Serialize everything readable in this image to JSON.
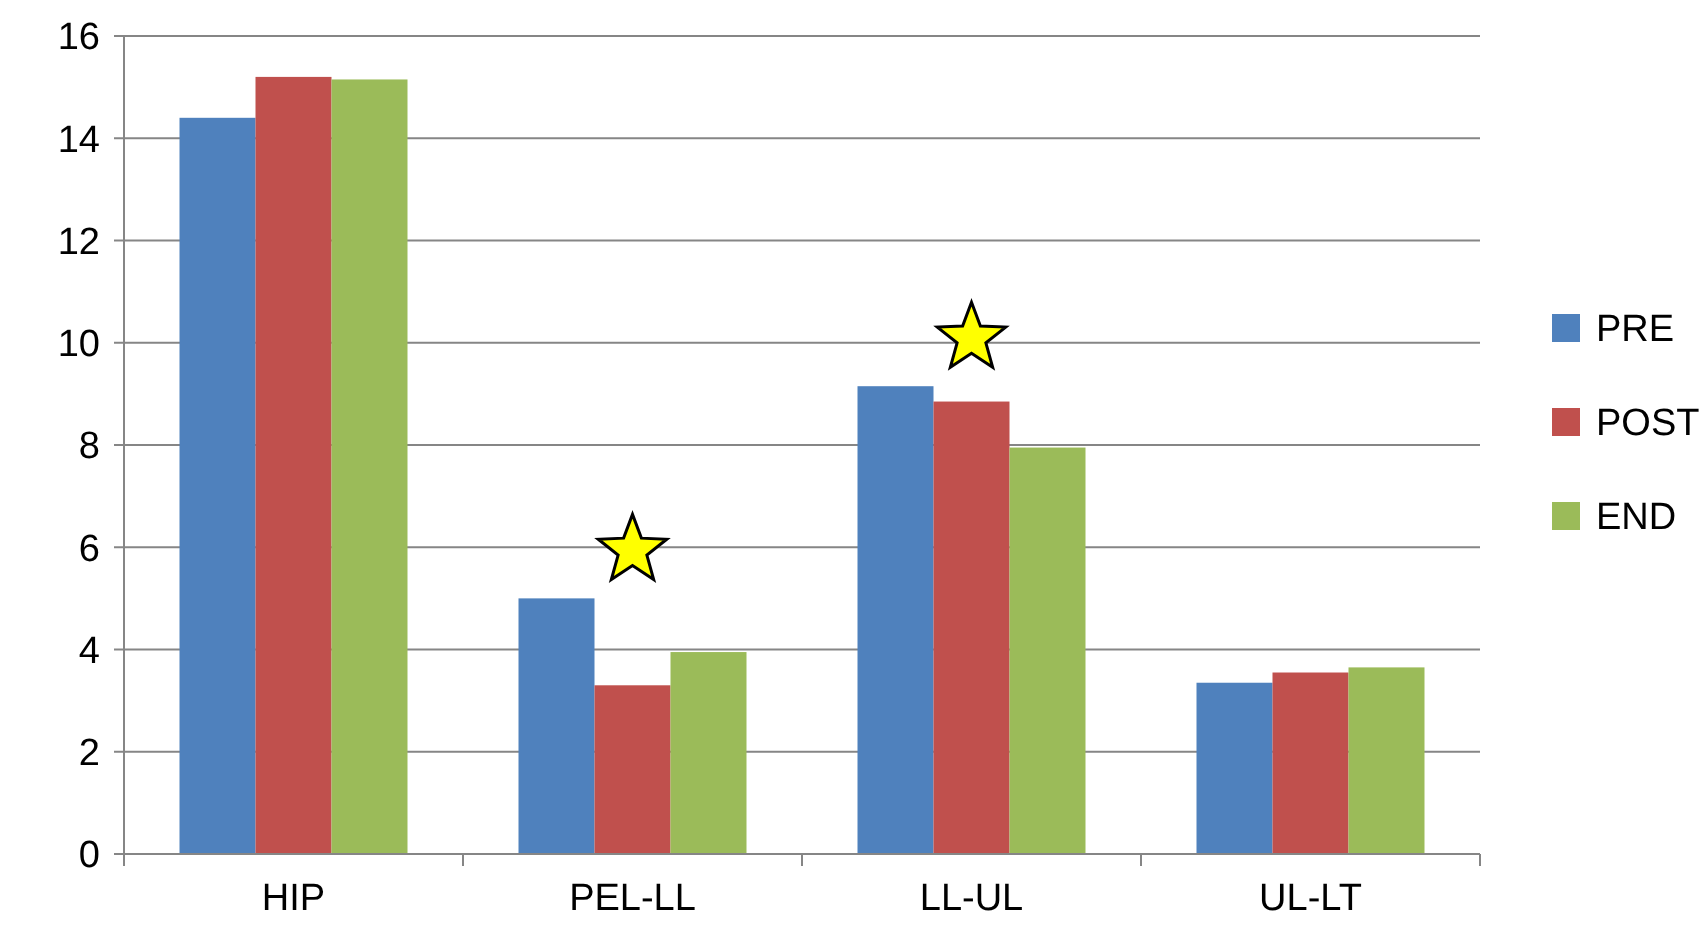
{
  "chart_data": {
    "type": "bar",
    "categories": [
      "HIP",
      "PEL-LL",
      "LL-UL",
      "UL-LT"
    ],
    "series": [
      {
        "name": "PRE",
        "color": "#4f81bd",
        "values": [
          14.4,
          5.0,
          9.15,
          3.35
        ]
      },
      {
        "name": "POST",
        "color": "#c0504d",
        "values": [
          15.2,
          3.3,
          8.85,
          3.55
        ]
      },
      {
        "name": "END",
        "color": "#9bbb59",
        "values": [
          15.15,
          3.95,
          7.95,
          3.65
        ]
      }
    ],
    "ylim": [
      0,
      16
    ],
    "yticks": [
      0,
      2,
      4,
      6,
      8,
      10,
      12,
      14,
      16
    ],
    "grid": "y",
    "legend": "right"
  }
}
